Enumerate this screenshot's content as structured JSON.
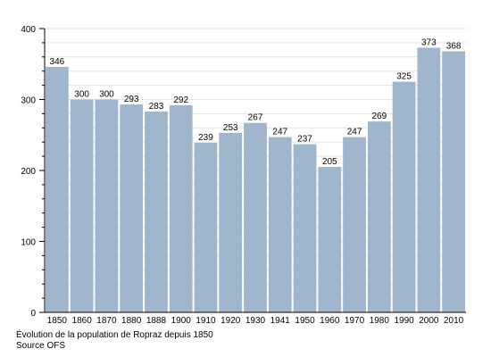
{
  "chart_data": {
    "type": "bar",
    "categories": [
      "1850",
      "1860",
      "1870",
      "1880",
      "1888",
      "1900",
      "1910",
      "1920",
      "1930",
      "1941",
      "1950",
      "1960",
      "1970",
      "1980",
      "1990",
      "2000",
      "2010"
    ],
    "values": [
      346,
      300,
      300,
      293,
      283,
      292,
      239,
      253,
      267,
      247,
      237,
      205,
      247,
      269,
      325,
      373,
      368
    ],
    "title": "",
    "xlabel": "",
    "ylabel": "",
    "ylim": [
      0,
      400
    ],
    "yticks": [
      0,
      100,
      200,
      300,
      400
    ],
    "grid": true,
    "bar_color": "#9fb6cd"
  },
  "caption": {
    "line1": "Évolution de la population de Ropraz depuis 1850",
    "line2": "Source OFS"
  }
}
